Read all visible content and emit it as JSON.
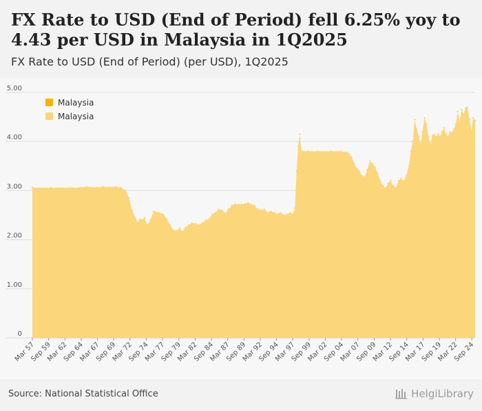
{
  "header": {
    "title": "FX Rate to USD (End of Period) fell 6.25% yoy to 4.43 per USD in Malaysia in 1Q2025",
    "subtitle": "FX Rate to USD (End of Period) (per USD), 1Q2025"
  },
  "footer": {
    "source": "Source: National Statistical Office",
    "brand": "HelgiLibrary"
  },
  "colors": {
    "series_primary": "#f5b400",
    "series_secondary": "#fbd67a",
    "grid": "#dddddd",
    "background": "#f7f7f7"
  },
  "chart_data": {
    "type": "area",
    "title": "FX Rate to USD (End of Period) (per USD), 1Q2025",
    "xlabel": "",
    "ylabel": "",
    "ylim": [
      0,
      5
    ],
    "yticks": [
      0,
      1,
      2,
      3,
      4,
      5
    ],
    "ytick_labels": [
      "0",
      "1.00",
      "2.00",
      "3.00",
      "4.00",
      "5.00"
    ],
    "xlim": [
      1957.17,
      2025.17
    ],
    "xtick_labels": [
      "Mar 57",
      "Sep 59",
      "Mar 62",
      "Sep 64",
      "Mar 67",
      "Sep 69",
      "Mar 72",
      "Sep 74",
      "Mar 77",
      "Sep 79",
      "Mar 82",
      "Sep 84",
      "Mar 87",
      "Sep 89",
      "Mar 92",
      "Sep 94",
      "Mar 97",
      "Sep 99",
      "Mar 02",
      "Sep 04",
      "Mar 07",
      "Sep 09",
      "Mar 12",
      "Sep 14",
      "Mar 17",
      "Sep 19",
      "Mar 22",
      "Sep 24"
    ],
    "xtick_values": [
      1957.17,
      1959.67,
      1962.17,
      1964.67,
      1967.17,
      1969.67,
      1972.17,
      1974.67,
      1977.17,
      1979.67,
      1982.17,
      1984.67,
      1987.17,
      1989.67,
      1992.17,
      1994.67,
      1997.17,
      1999.67,
      2002.17,
      2004.67,
      2007.17,
      2009.67,
      2012.17,
      2014.67,
      2017.17,
      2019.67,
      2022.17,
      2024.67
    ],
    "legend": {
      "position": "top-left",
      "entries": [
        "Malaysia",
        "Malaysia"
      ]
    },
    "series": [
      {
        "name": "Malaysia",
        "x": [
          1957.17,
          1960.0,
          1963.0,
          1964.5,
          1965.5,
          1967.0,
          1968.0,
          1969.0,
          1970.0,
          1970.8,
          1971.5,
          1972.0,
          1972.5,
          1973.0,
          1973.3,
          1973.7,
          1974.0,
          1974.4,
          1974.8,
          1975.3,
          1975.8,
          1976.5,
          1977.3,
          1977.8,
          1978.3,
          1978.8,
          1979.3,
          1979.8,
          1980.2,
          1980.7,
          1981.2,
          1981.7,
          1982.2,
          1982.8,
          1983.3,
          1983.8,
          1984.3,
          1984.8,
          1985.3,
          1985.8,
          1986.3,
          1986.8,
          1987.3,
          1987.8,
          1988.3,
          1988.8,
          1989.3,
          1989.8,
          1990.3,
          1990.8,
          1991.3,
          1991.8,
          1992.3,
          1992.8,
          1993.3,
          1993.8,
          1994.3,
          1994.8,
          1995.3,
          1995.8,
          1996.3,
          1996.8,
          1997.2,
          1997.5,
          1997.75,
          1998.0,
          1998.25,
          1998.5,
          1998.8,
          1999.5,
          2001.0,
          2003.0,
          2004.5,
          2005.5,
          2005.8,
          2006.2,
          2006.6,
          2007.0,
          2007.4,
          2007.8,
          2008.2,
          2008.6,
          2009.0,
          2009.4,
          2009.8,
          2010.2,
          2010.6,
          2011.0,
          2011.4,
          2011.8,
          2012.2,
          2012.6,
          2013.0,
          2013.4,
          2013.8,
          2014.2,
          2014.6,
          2015.0,
          2015.3,
          2015.6,
          2015.9,
          2016.2,
          2016.5,
          2016.8,
          2017.1,
          2017.4,
          2017.7,
          2018.0,
          2018.3,
          2018.6,
          2018.9,
          2019.2,
          2019.5,
          2019.8,
          2020.1,
          2020.4,
          2020.7,
          2021.0,
          2021.3,
          2021.6,
          2021.9,
          2022.2,
          2022.5,
          2022.8,
          2023.1,
          2023.4,
          2023.7,
          2024.0,
          2024.3,
          2024.6,
          2024.85,
          2025.17
        ],
        "values": [
          3.06,
          3.06,
          3.06,
          3.06,
          3.08,
          3.06,
          3.08,
          3.07,
          3.08,
          3.06,
          3.0,
          2.85,
          2.6,
          2.45,
          2.35,
          2.42,
          2.4,
          2.45,
          2.3,
          2.4,
          2.58,
          2.56,
          2.52,
          2.42,
          2.3,
          2.2,
          2.18,
          2.24,
          2.16,
          2.25,
          2.3,
          2.34,
          2.33,
          2.3,
          2.34,
          2.4,
          2.42,
          2.52,
          2.55,
          2.62,
          2.6,
          2.54,
          2.62,
          2.7,
          2.72,
          2.72,
          2.72,
          2.73,
          2.75,
          2.72,
          2.7,
          2.62,
          2.6,
          2.62,
          2.55,
          2.58,
          2.55,
          2.52,
          2.55,
          2.5,
          2.52,
          2.55,
          2.52,
          2.65,
          3.4,
          3.9,
          4.15,
          3.8,
          3.8,
          3.8,
          3.8,
          3.8,
          3.8,
          3.78,
          3.75,
          3.68,
          3.55,
          3.45,
          3.4,
          3.3,
          3.28,
          3.42,
          3.6,
          3.55,
          3.48,
          3.35,
          3.2,
          3.1,
          3.05,
          3.15,
          3.2,
          3.1,
          3.05,
          3.2,
          3.25,
          3.2,
          3.3,
          3.5,
          3.8,
          4.0,
          4.45,
          4.25,
          4.1,
          3.95,
          4.2,
          4.48,
          4.35,
          4.1,
          3.95,
          4.12,
          4.15,
          4.1,
          4.15,
          4.1,
          4.2,
          4.28,
          4.15,
          4.1,
          4.2,
          4.18,
          4.25,
          4.35,
          4.62,
          4.4,
          4.65,
          4.55,
          4.68,
          4.7,
          4.45,
          4.2,
          4.48,
          4.43
        ]
      }
    ]
  }
}
